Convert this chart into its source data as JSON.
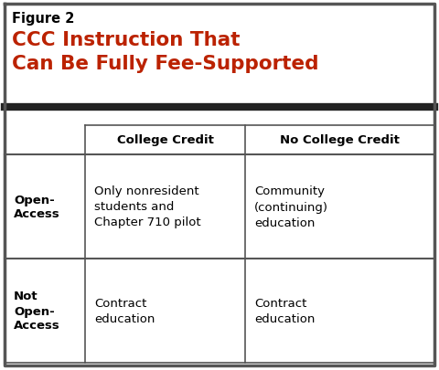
{
  "figure_label": "Figure 2",
  "title_line1": "CCC Instruction That",
  "title_line2": "Can Be Fully Fee-Supported",
  "title_color": "#bb2200",
  "label_color": "#000000",
  "bg_color": "#ffffff",
  "outer_border_color": "#555555",
  "thick_divider_color": "#222222",
  "col_headers": [
    "College Credit",
    "No College Credit"
  ],
  "row_headers": [
    "Open-\nAccess",
    "Not\nOpen-\nAccess"
  ],
  "cells": [
    [
      "Only nonresident\nstudents and\nChapter 710 pilot",
      "Community\n(continuing)\neducation"
    ],
    [
      "Contract\neducation",
      "Contract\neducation"
    ]
  ],
  "header_fontsize": 9.5,
  "cell_fontsize": 9.5,
  "row_header_fontsize": 9.5,
  "figure_label_fontsize": 10.5,
  "title_fontsize": 15.5,
  "fig_w": 4.8,
  "fig_h": 4.06,
  "dpi": 100
}
